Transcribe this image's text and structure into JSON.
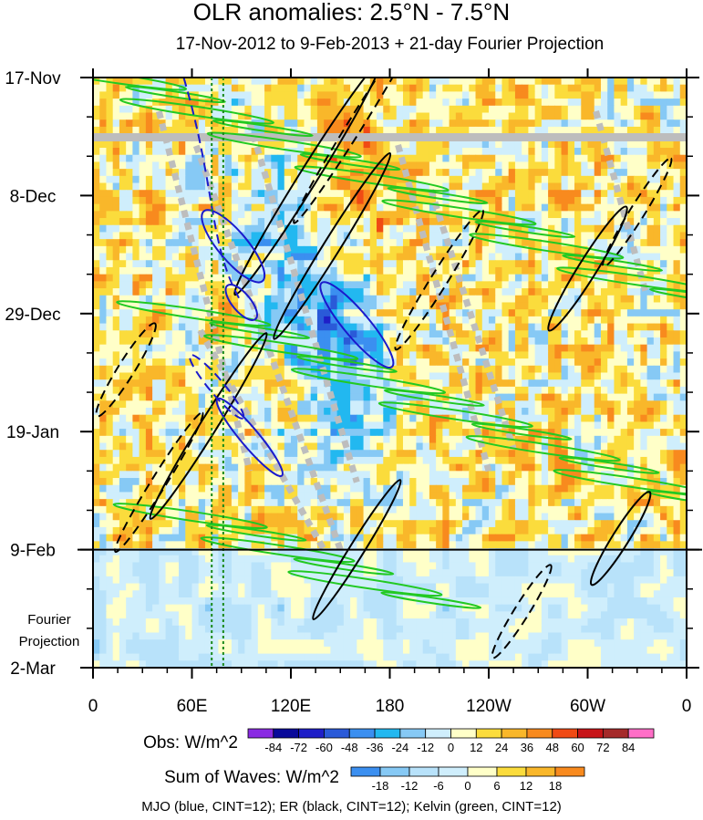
{
  "chart_data": {
    "type": "heatmap",
    "title": "OLR anomalies: 2.5°N - 7.5°N",
    "subtitle": "17-Nov-2012 to 9-Feb-2013 + 21-day Fourier Projection",
    "x_tick_labels": [
      "0",
      "60E",
      "120E",
      "180",
      "120W",
      "60W",
      "0"
    ],
    "x_tick_longitudes": [
      0,
      60,
      120,
      180,
      240,
      300,
      360
    ],
    "xlim": [
      0,
      360
    ],
    "y_tick_labels": [
      "17-Nov",
      "8-Dec",
      "29-Dec",
      "19-Jan",
      "9-Feb",
      "2-Mar"
    ],
    "y_tick_days": [
      0,
      21,
      42,
      63,
      84,
      105
    ],
    "ylim_days": [
      0,
      105
    ],
    "observation_end_day": 84,
    "projection_label": [
      "Fourier",
      "Projection"
    ],
    "vertical_reference_longitudes": [
      72,
      79
    ],
    "obs_colorbar": {
      "label": "Obs: W/m^2",
      "levels": [
        -84,
        -72,
        -60,
        -48,
        -36,
        -24,
        -12,
        0,
        12,
        24,
        36,
        48,
        60,
        72,
        84
      ],
      "colors": [
        "#8a2be2",
        "#0a0a9a",
        "#1f1fc8",
        "#2a5ad8",
        "#3b8ff0",
        "#22b8f0",
        "#86c9f5",
        "#cfeefc",
        "#ffffc8",
        "#fbdc3c",
        "#f9b72a",
        "#f88a1e",
        "#f04a14",
        "#c81418",
        "#a52a2a",
        "#ff6ec7"
      ]
    },
    "waves_colorbar": {
      "label": "Sum of Waves: W/m^2",
      "levels": [
        -18,
        -12,
        -6,
        0,
        6,
        12,
        18
      ],
      "colors": [
        "#3b8ff0",
        "#86c9f5",
        "#b8e2fa",
        "#cfeefc",
        "#ffffc8",
        "#fbdc3c",
        "#f9b72a",
        "#f88a1e"
      ]
    },
    "contour_legend": "MJO (blue, CINT=12); ER (black, CINT=12); Kelvin (green, CINT=12)",
    "contour_colors": {
      "MJO": "#1a1acc",
      "ER": "#000000",
      "Kelvin": "#22c922",
      "missing": "#bdbdbd"
    }
  }
}
